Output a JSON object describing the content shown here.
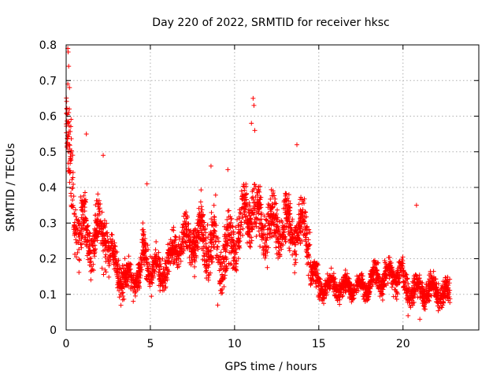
{
  "chart_data": {
    "type": "scatter",
    "title": "Day 220 of 2022, SRMTID for receiver hksc",
    "xlabel": "GPS time / hours",
    "ylabel": "SRMTID / TECUs",
    "xlim": [
      0,
      24.5
    ],
    "ylim": [
      0,
      0.8
    ],
    "xticks": [
      0,
      5,
      10,
      15,
      20
    ],
    "yticks": [
      0,
      0.1,
      0.2,
      0.3,
      0.4,
      0.5,
      0.6,
      0.7,
      0.8
    ],
    "xtick_labels": [
      "0",
      "5",
      "10",
      "15",
      "20"
    ],
    "ytick_labels": [
      "0",
      "0.1",
      "0.2",
      "0.3",
      "0.4",
      "0.5",
      "0.6",
      "0.7",
      "0.8"
    ],
    "grid": true,
    "marker": "+",
    "series": [
      {
        "name": "SRMTID",
        "color": "#ff0000",
        "segments": [
          {
            "x": [
              0,
              0.5
            ],
            "y": [
              0.55,
              0.3
            ],
            "spread": 0.12
          },
          {
            "x": [
              0.5,
              1.5
            ],
            "y": [
              0.3,
              0.25
            ],
            "spread": 0.08
          },
          {
            "x": [
              1.5,
              2.5
            ],
            "y": [
              0.26,
              0.28
            ],
            "spread": 0.08
          },
          {
            "x": [
              2.5,
              3.5
            ],
            "y": [
              0.22,
              0.14
            ],
            "spread": 0.05
          },
          {
            "x": [
              3.5,
              4.5
            ],
            "y": [
              0.14,
              0.16
            ],
            "spread": 0.04
          },
          {
            "x": [
              4.5,
              5.5
            ],
            "y": [
              0.22,
              0.15
            ],
            "spread": 0.05
          },
          {
            "x": [
              5.5,
              6.5
            ],
            "y": [
              0.15,
              0.22
            ],
            "spread": 0.05
          },
          {
            "x": [
              6.5,
              8.0
            ],
            "y": [
              0.24,
              0.26
            ],
            "spread": 0.06
          },
          {
            "x": [
              8.0,
              9.0
            ],
            "y": [
              0.26,
              0.22
            ],
            "spread": 0.08
          },
          {
            "x": [
              9.0,
              10.0
            ],
            "y": [
              0.2,
              0.24
            ],
            "spread": 0.08
          },
          {
            "x": [
              10.0,
              11.2
            ],
            "y": [
              0.26,
              0.36
            ],
            "spread": 0.08
          },
          {
            "x": [
              11.2,
              12.5
            ],
            "y": [
              0.3,
              0.28
            ],
            "spread": 0.08
          },
          {
            "x": [
              12.5,
              14.5
            ],
            "y": [
              0.3,
              0.26
            ],
            "spread": 0.07
          },
          {
            "x": [
              14.5,
              15.0
            ],
            "y": [
              0.18,
              0.12
            ],
            "spread": 0.04
          },
          {
            "x": [
              15.0,
              18.0
            ],
            "y": [
              0.12,
              0.12
            ],
            "spread": 0.03
          },
          {
            "x": [
              18.0,
              20.0
            ],
            "y": [
              0.14,
              0.16
            ],
            "spread": 0.04
          },
          {
            "x": [
              20.0,
              22.8
            ],
            "y": [
              0.12,
              0.1
            ],
            "spread": 0.035
          }
        ],
        "notable_points": [
          {
            "x": 0.1,
            "y": 0.79
          },
          {
            "x": 0.12,
            "y": 0.78
          },
          {
            "x": 0.15,
            "y": 0.74
          },
          {
            "x": 0.1,
            "y": 0.69
          },
          {
            "x": 0.2,
            "y": 0.68
          },
          {
            "x": 0.05,
            "y": 0.62
          },
          {
            "x": 0.15,
            "y": 0.61
          },
          {
            "x": 0.1,
            "y": 0.58
          },
          {
            "x": 11.1,
            "y": 0.65
          },
          {
            "x": 11.15,
            "y": 0.63
          },
          {
            "x": 11.0,
            "y": 0.58
          },
          {
            "x": 11.2,
            "y": 0.56
          },
          {
            "x": 1.2,
            "y": 0.55
          },
          {
            "x": 2.2,
            "y": 0.49
          },
          {
            "x": 4.8,
            "y": 0.41
          },
          {
            "x": 8.6,
            "y": 0.46
          },
          {
            "x": 9.6,
            "y": 0.45
          },
          {
            "x": 13.7,
            "y": 0.52
          },
          {
            "x": 20.8,
            "y": 0.35
          },
          {
            "x": 9.0,
            "y": 0.07
          },
          {
            "x": 20.3,
            "y": 0.04
          },
          {
            "x": 21.0,
            "y": 0.03
          }
        ]
      }
    ]
  }
}
